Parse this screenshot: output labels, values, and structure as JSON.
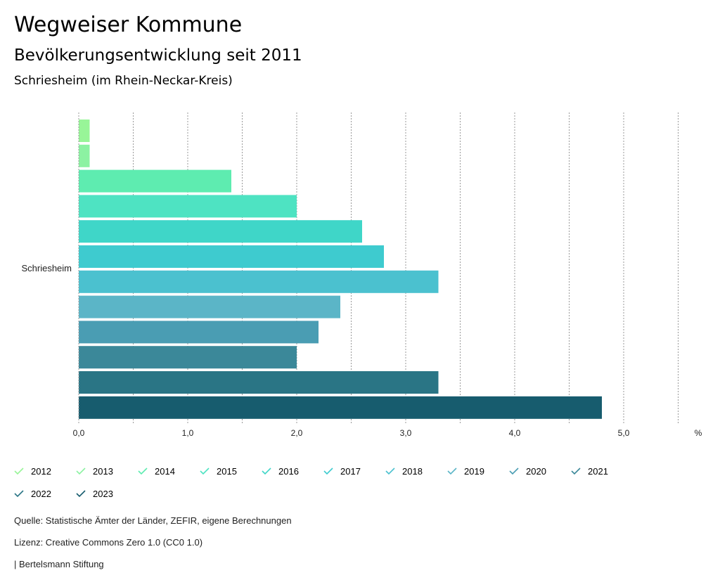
{
  "header": {
    "title": "Wegweiser Kommune",
    "subtitle": "Bevölkerungsentwicklung seit 2011",
    "region": "Schriesheim (im Rhein-Neckar-Kreis)"
  },
  "chart_data": {
    "type": "bar",
    "orientation": "horizontal",
    "categories": [
      "Schriesheim"
    ],
    "series": [
      {
        "name": "2012",
        "values": [
          0.1
        ],
        "color": "#98f598"
      },
      {
        "name": "2013",
        "values": [
          0.1
        ],
        "color": "#8cf2a2"
      },
      {
        "name": "2014",
        "values": [
          1.4
        ],
        "color": "#5eecb0"
      },
      {
        "name": "2015",
        "values": [
          2.0
        ],
        "color": "#4ee3c2"
      },
      {
        "name": "2016",
        "values": [
          2.6
        ],
        "color": "#3fd6c8"
      },
      {
        "name": "2017",
        "values": [
          2.8
        ],
        "color": "#3ecbcf"
      },
      {
        "name": "2018",
        "values": [
          3.3
        ],
        "color": "#4bc1cf"
      },
      {
        "name": "2019",
        "values": [
          2.4
        ],
        "color": "#5bb5c7"
      },
      {
        "name": "2020",
        "values": [
          2.2
        ],
        "color": "#4a9db3"
      },
      {
        "name": "2021",
        "values": [
          2.0
        ],
        "color": "#3b8899"
      },
      {
        "name": "2022",
        "values": [
          3.3
        ],
        "color": "#2a7585"
      },
      {
        "name": "2023",
        "values": [
          4.8
        ],
        "color": "#175c6e"
      }
    ],
    "xlim": [
      0,
      5.5
    ],
    "ticks": [
      "0,0",
      "1,0",
      "2,0",
      "3,0",
      "4,0",
      "5,0"
    ],
    "tick_values": [
      0,
      1,
      2,
      3,
      4,
      5
    ],
    "unit": "%",
    "grid": true
  },
  "footer": {
    "source": "Quelle: Statistische Ämter der Länder, ZEFIR, eigene Berechnungen",
    "license": "Lizenz: Creative Commons Zero 1.0 (CC0 1.0)",
    "publisher": "| Bertelsmann Stiftung"
  }
}
